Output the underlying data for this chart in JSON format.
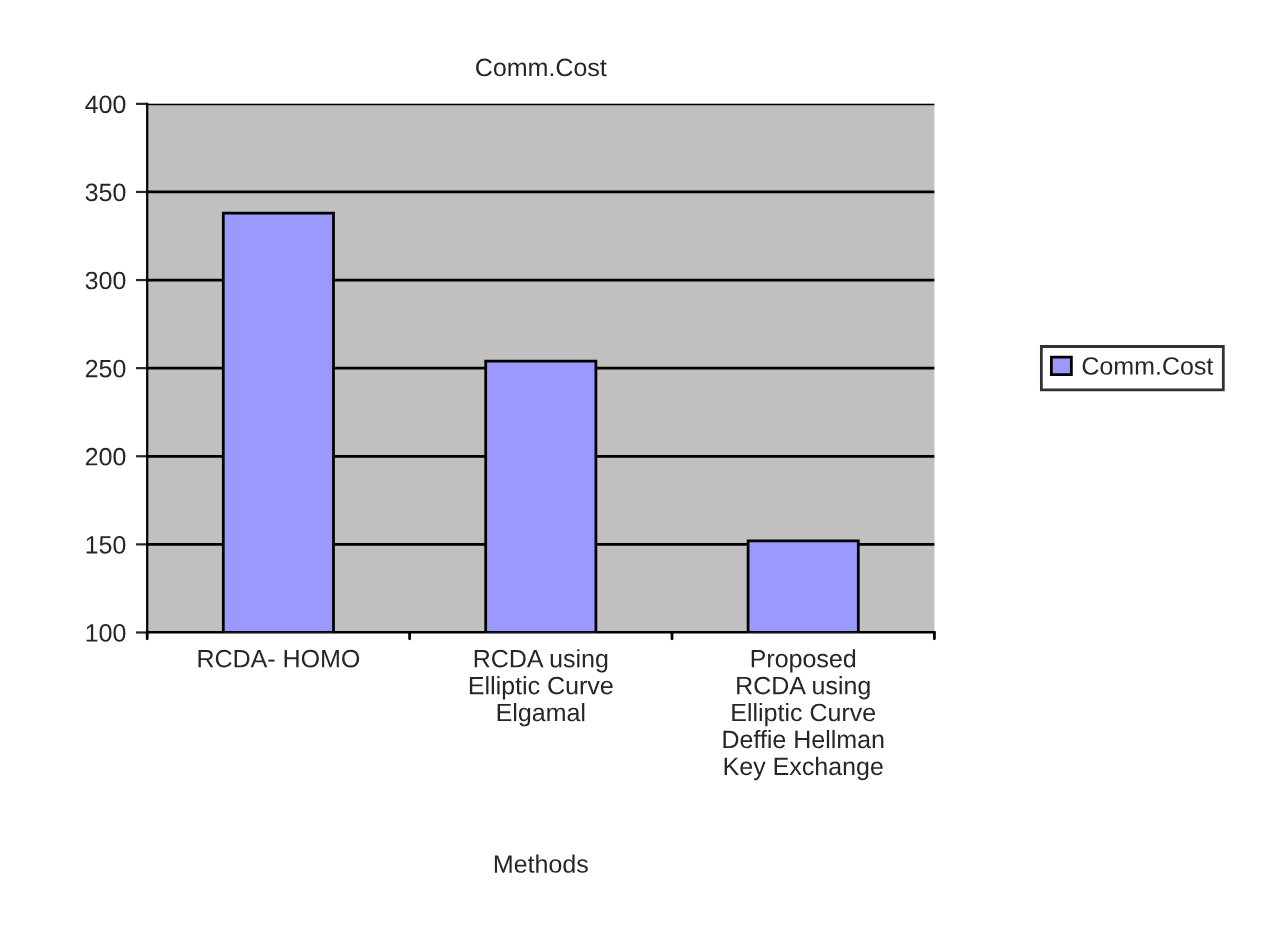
{
  "chart_data": {
    "type": "bar",
    "title": "Comm.Cost",
    "xlabel": "Methods",
    "categories": [
      "RCDA- HOMO",
      "RCDA using\nElliptic Curve\nElgamal",
      "Proposed\nRCDA using\nElliptic Curve\nDeffie Hellman\nKey Exchange"
    ],
    "series": [
      {
        "name": "Comm.Cost",
        "color": "#9999ff",
        "values": [
          338,
          254,
          152
        ]
      }
    ],
    "ylim": [
      100,
      400
    ],
    "yticks": [
      100,
      150,
      200,
      250,
      300,
      350,
      400
    ],
    "grid": "y",
    "legend": "right"
  }
}
